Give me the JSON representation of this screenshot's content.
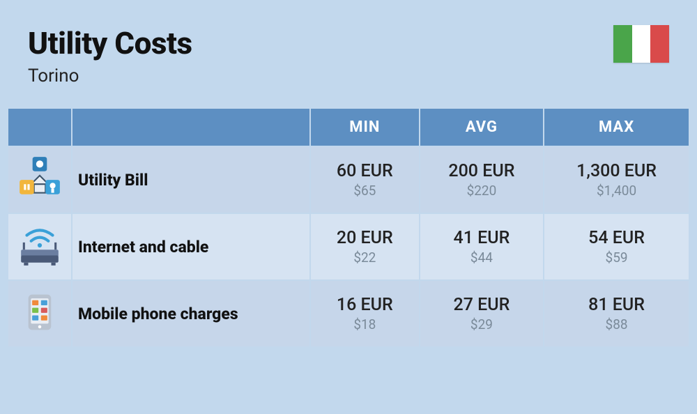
{
  "header": {
    "title": "Utility Costs",
    "subtitle": "Torino"
  },
  "flag": {
    "stripes": [
      "#4aa54a",
      "#ffffff",
      "#d94a4a"
    ]
  },
  "table": {
    "header_bg": "#5d8fc2",
    "header_fg": "#ffffff",
    "row_alt_colors": [
      "#c6d6ea",
      "#d6e3f2"
    ],
    "columns": [
      "MIN",
      "AVG",
      "MAX"
    ],
    "rows": [
      {
        "icon": "utility",
        "label": "Utility Bill",
        "values": [
          {
            "eur": "60 EUR",
            "usd": "$65"
          },
          {
            "eur": "200 EUR",
            "usd": "$220"
          },
          {
            "eur": "1,300 EUR",
            "usd": "$1,400"
          }
        ]
      },
      {
        "icon": "router",
        "label": "Internet and cable",
        "values": [
          {
            "eur": "20 EUR",
            "usd": "$22"
          },
          {
            "eur": "41 EUR",
            "usd": "$44"
          },
          {
            "eur": "54 EUR",
            "usd": "$59"
          }
        ]
      },
      {
        "icon": "phone",
        "label": "Mobile phone charges",
        "values": [
          {
            "eur": "16 EUR",
            "usd": "$18"
          },
          {
            "eur": "27 EUR",
            "usd": "$29"
          },
          {
            "eur": "81 EUR",
            "usd": "$88"
          }
        ]
      }
    ]
  },
  "icons": {
    "utility_colors": {
      "gear": "#2f7fb8",
      "plug": "#f2b63c",
      "tap": "#3aa0d8",
      "house": "#e9eef4",
      "outline": "#3b5268"
    },
    "router_colors": {
      "body": "#4a5a78",
      "top": "#6b7ea0",
      "wifi": "#3aa0d8"
    },
    "phone_colors": {
      "body": "#b9c3d0",
      "screen": "#e9eef4",
      "app1": "#f08a3c",
      "app2": "#4aa0d8",
      "app3": "#7ac04a",
      "app4": "#d85a5a"
    }
  }
}
